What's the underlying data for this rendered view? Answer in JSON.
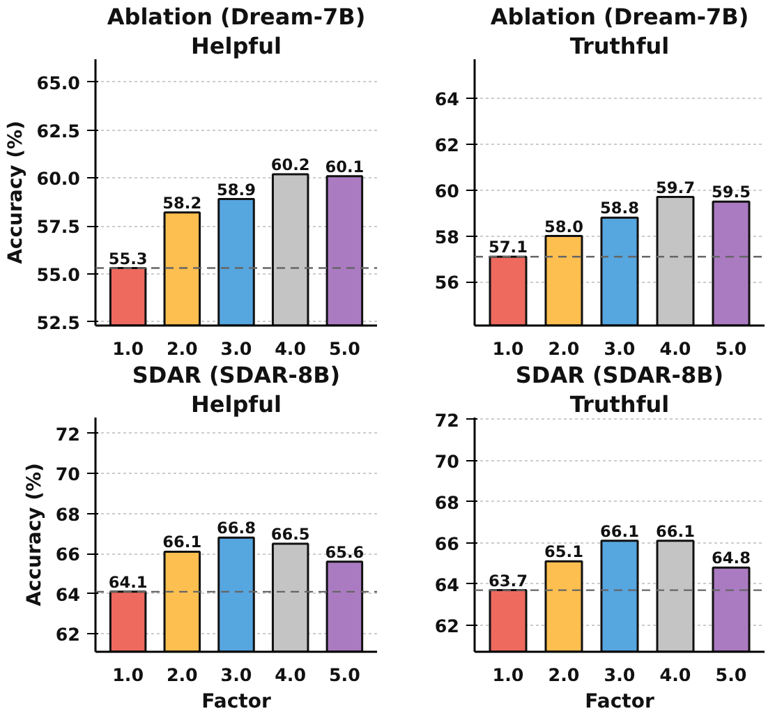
{
  "chart_data": [
    {
      "type": "bar",
      "title": "Ablation (Dream-7B)",
      "subtitle": "Helpful",
      "ylabel": "Accuracy (%)",
      "categories": [
        "1.0",
        "2.0",
        "3.0",
        "4.0",
        "5.0"
      ],
      "values": [
        55.3,
        58.2,
        58.9,
        60.2,
        60.1
      ],
      "value_labels": [
        "55.3",
        "58.2",
        "58.9",
        "60.2",
        "60.1"
      ],
      "colors": [
        "#ee6a5f",
        "#fdbf50",
        "#56a6e0",
        "#c4c4c4",
        "#ab7bc2"
      ],
      "ylim": [
        52.3,
        66.2
      ],
      "yticks": [
        {
          "value": 52.5,
          "label": "52.5"
        },
        {
          "value": 55,
          "label": "55.0"
        },
        {
          "value": 57.5,
          "label": "57.5"
        },
        {
          "value": 60,
          "label": "60.0"
        },
        {
          "value": 62.5,
          "label": "62.5"
        },
        {
          "value": 65,
          "label": "65.0"
        }
      ],
      "grid": "y",
      "ref_lines": [
        {
          "axis": "y",
          "value": 55.3,
          "label": null,
          "color": "#666666",
          "line_style": "dashed"
        }
      ]
    },
    {
      "type": "bar",
      "title": "Ablation (Dream-7B)",
      "subtitle": "Truthful",
      "categories": [
        "1.0",
        "2.0",
        "3.0",
        "4.0",
        "5.0"
      ],
      "values": [
        57.1,
        58.0,
        58.8,
        59.7,
        59.5
      ],
      "value_labels": [
        "57.1",
        "58.0",
        "58.8",
        "59.7",
        "59.5"
      ],
      "colors": [
        "#ee6a5f",
        "#fdbf50",
        "#56a6e0",
        "#c4c4c4",
        "#ab7bc2"
      ],
      "ylim": [
        54.1,
        65.7
      ],
      "yticks": [
        56,
        58,
        60,
        62,
        64
      ],
      "grid": "y",
      "ref_lines": [
        {
          "axis": "y",
          "value": 57.1,
          "label": null,
          "color": "#666666",
          "line_style": "dashed"
        }
      ]
    },
    {
      "type": "bar",
      "title": "SDAR (SDAR-8B)",
      "subtitle": "Helpful",
      "xlabel": "Factor",
      "ylabel": "Accuracy (%)",
      "categories": [
        "1.0",
        "2.0",
        "3.0",
        "4.0",
        "5.0"
      ],
      "values": [
        64.1,
        66.1,
        66.8,
        66.5,
        65.6
      ],
      "value_labels": [
        "64.1",
        "66.1",
        "66.8",
        "66.5",
        "65.6"
      ],
      "colors": [
        "#ee6a5f",
        "#fdbf50",
        "#56a6e0",
        "#c4c4c4",
        "#ab7bc2"
      ],
      "ylim": [
        61.1,
        72.8
      ],
      "yticks": [
        62,
        64,
        66,
        68,
        70,
        72
      ],
      "grid": "y",
      "ref_lines": [
        {
          "axis": "y",
          "value": 64.1,
          "label": null,
          "color": "#666666",
          "line_style": "dashed"
        }
      ]
    },
    {
      "type": "bar",
      "title": "SDAR (SDAR-8B)",
      "subtitle": "Truthful",
      "xlabel": "Factor",
      "categories": [
        "1.0",
        "2.0",
        "3.0",
        "4.0",
        "5.0"
      ],
      "values": [
        63.7,
        65.1,
        66.1,
        66.1,
        64.8
      ],
      "value_labels": [
        "63.7",
        "65.1",
        "66.1",
        "66.1",
        "64.8"
      ],
      "colors": [
        "#ee6a5f",
        "#fdbf50",
        "#56a6e0",
        "#c4c4c4",
        "#ab7bc2"
      ],
      "ylim": [
        60.7,
        72.1
      ],
      "yticks": [
        62,
        64,
        66,
        68,
        70,
        72
      ],
      "grid": "y",
      "ref_lines": [
        {
          "axis": "y",
          "value": 63.7,
          "label": null,
          "color": "#666666",
          "line_style": "dashed"
        }
      ]
    }
  ]
}
